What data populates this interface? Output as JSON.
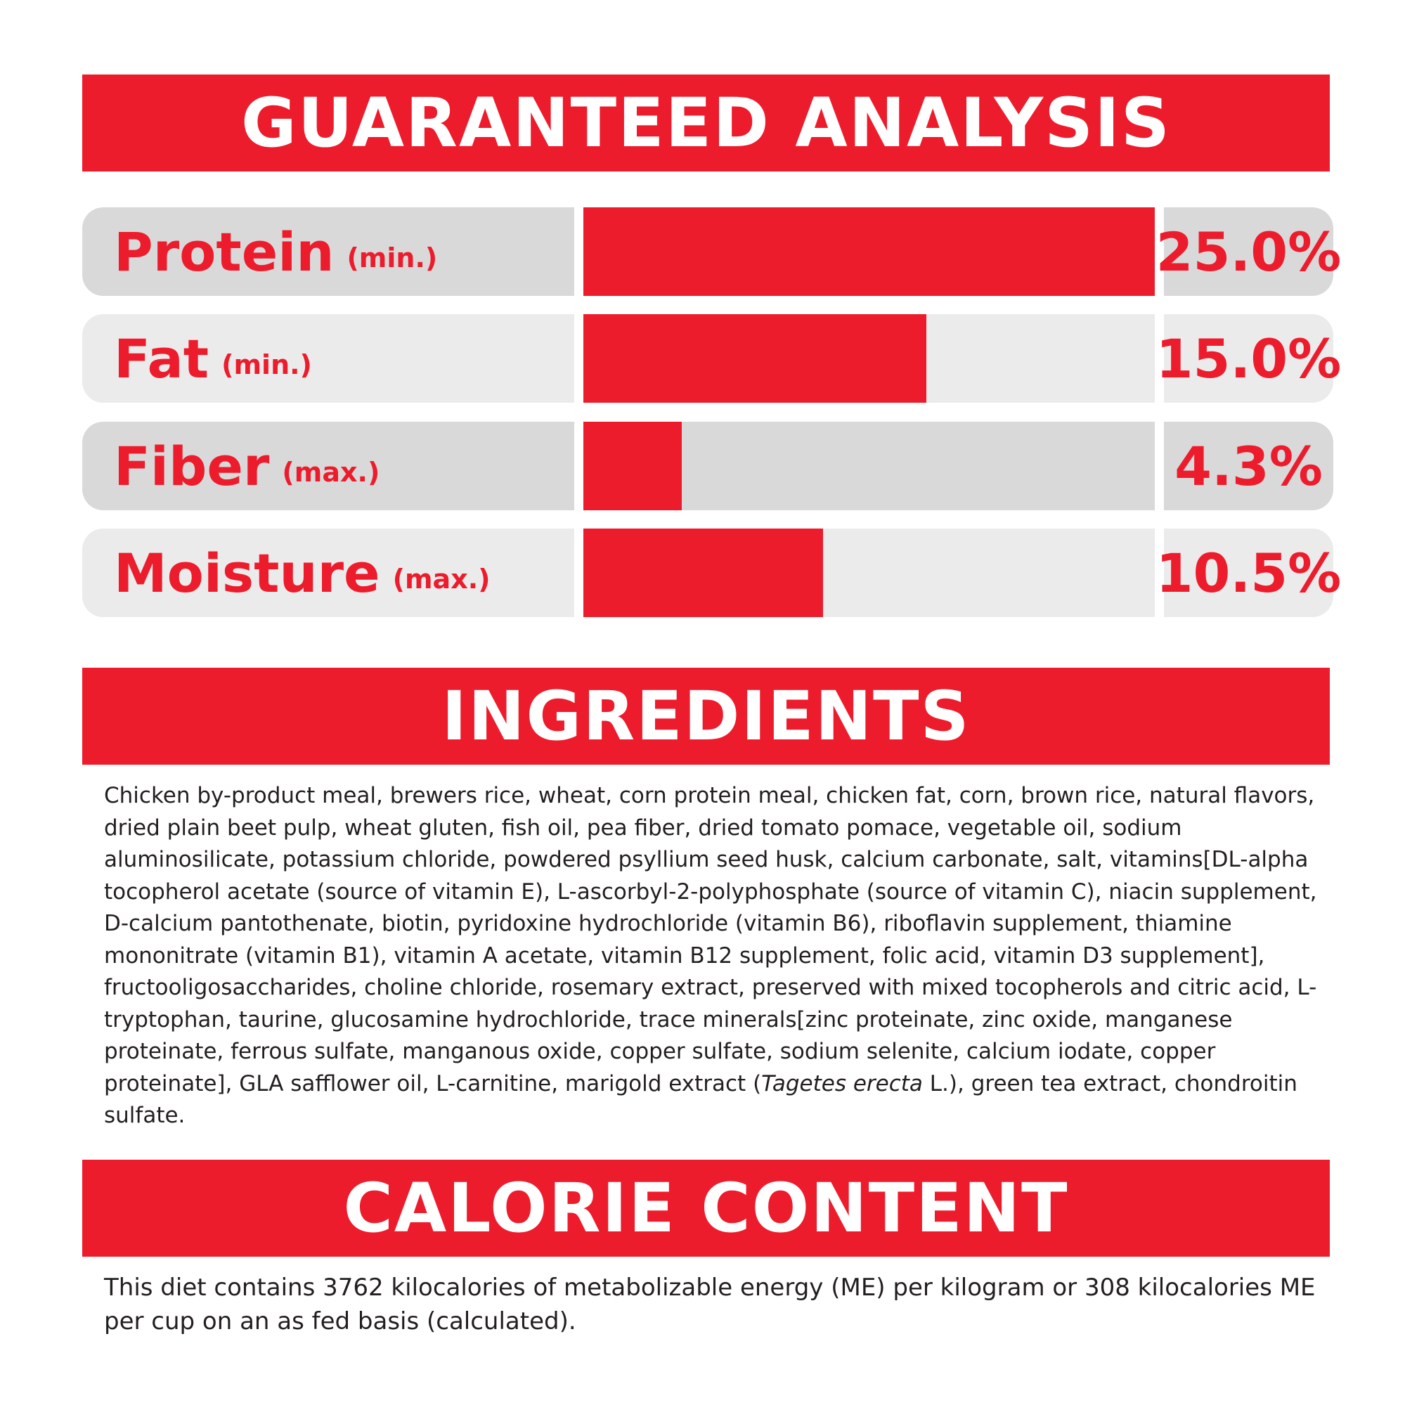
{
  "guaranteed_analysis": {
    "title": "GUARANTEED ANALYSIS",
    "rows": [
      {
        "name": "Protein",
        "qualifier": "(min.)",
        "value": "25.0%",
        "percent": 25.0
      },
      {
        "name": "Fat",
        "qualifier": "(min.)",
        "value": "15.0%",
        "percent": 15.0
      },
      {
        "name": "Fiber",
        "qualifier": "(max.)",
        "value": "4.3%",
        "percent": 4.3
      },
      {
        "name": "Moisture",
        "qualifier": "(max.)",
        "value": "10.5%",
        "percent": 10.5
      }
    ]
  },
  "ingredients": {
    "title": "INGREDIENTS",
    "text_before_italic": "Chicken by-product meal, brewers rice, wheat, corn protein meal, chicken fat, corn, brown rice, natural flavors, dried plain beet pulp, wheat gluten, fish oil, pea fiber, dried tomato pomace, vegetable oil, sodium aluminosilicate, potassium chloride, powdered psyllium seed husk, calcium carbonate, salt, vitamins[DL-alpha tocopherol acetate (source of vitamin E), L-ascorbyl-2-polyphosphate (source of vitamin C), niacin supplement, D-calcium pantothenate, biotin, pyridoxine hydrochloride (vitamin B6), riboflavin supplement, thiamine mononitrate (vitamin B1), vitamin A acetate, vitamin B12 supplement, folic acid, vitamin D3 supplement], fructooligosaccharides, choline chloride, rosemary extract, preserved with mixed tocopherols and citric acid, L-tryptophan, taurine, glucosamine hydrochloride, trace minerals[zinc proteinate, zinc oxide, manganese proteinate, ferrous sulfate, manganous oxide, copper sulfate, sodium selenite, calcium iodate, copper proteinate], GLA safflower oil, L-carnitine, marigold extract (",
    "italic_text": "Tagetes erecta",
    "text_after_italic": " L.), green tea extract, chondroitin sulfate."
  },
  "calorie_content": {
    "title": "CALORIE CONTENT",
    "text": "This diet contains 3762 kilocalories of metabolizable energy (ME) per kilogram or 308 kilocalories ME per cup on an as fed basis (calculated)."
  },
  "colors": {
    "accent_red": "#ed1c2c",
    "row_shade_dark": "#d9d9d9",
    "row_shade_light": "#ebebeb",
    "text": "#231f20"
  }
}
